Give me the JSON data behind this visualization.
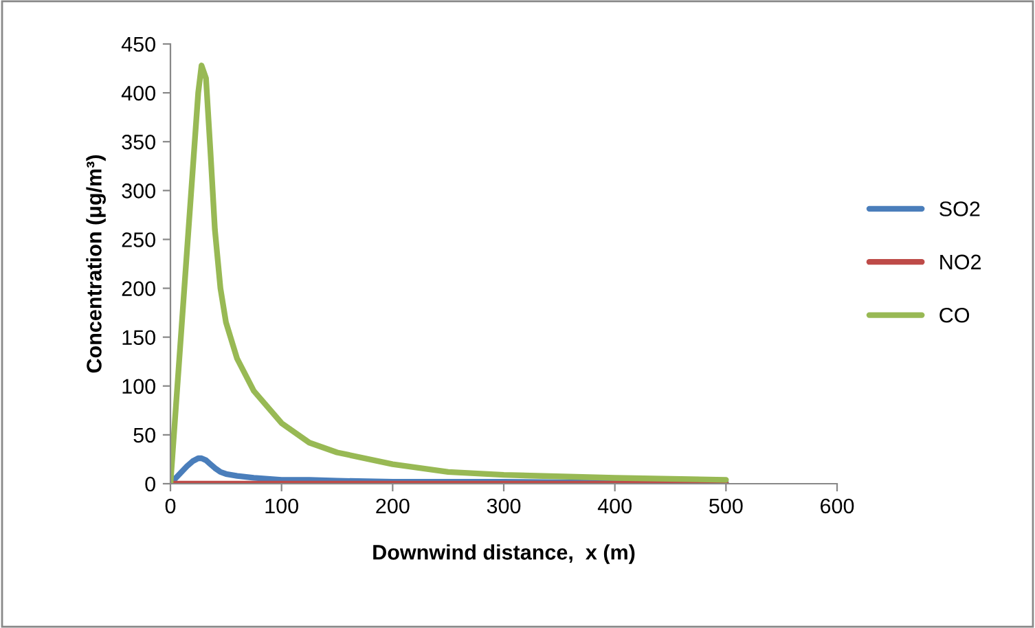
{
  "chart_data": {
    "type": "line",
    "xlabel": "Downwind distance,  x (m)",
    "ylabel": "Concentration (μg/m³)",
    "x": [
      0,
      5,
      10,
      15,
      20,
      25,
      28,
      32,
      36,
      40,
      45,
      50,
      60,
      75,
      100,
      125,
      150,
      200,
      250,
      300,
      400,
      500
    ],
    "series": [
      {
        "name": "SO2",
        "color": "#4a7ebb",
        "values": [
          0,
          6,
          12,
          18,
          23,
          26,
          26,
          24,
          20,
          16,
          12,
          10,
          8,
          6,
          4,
          4,
          3,
          2,
          2,
          2,
          1,
          1
        ]
      },
      {
        "name": "NO2",
        "color": "#be4b48",
        "values": [
          0,
          0,
          0,
          0,
          0,
          0,
          0,
          0,
          0,
          0,
          0,
          0,
          0,
          0,
          0,
          0,
          0,
          0,
          0,
          0,
          0,
          0
        ]
      },
      {
        "name": "CO",
        "color": "#98b954",
        "values": [
          0,
          80,
          160,
          240,
          320,
          400,
          428,
          415,
          340,
          260,
          200,
          165,
          128,
          95,
          62,
          42,
          32,
          20,
          12,
          9,
          6,
          4
        ]
      }
    ],
    "xlim": [
      0,
      600
    ],
    "xticks": [
      0,
      100,
      200,
      300,
      400,
      500,
      600
    ],
    "ylim": [
      0,
      450
    ],
    "yticks": [
      0,
      50,
      100,
      150,
      200,
      250,
      300,
      350,
      400,
      450
    ],
    "grid": false,
    "legend": "right",
    "marker": "none",
    "line_style": "solid"
  }
}
